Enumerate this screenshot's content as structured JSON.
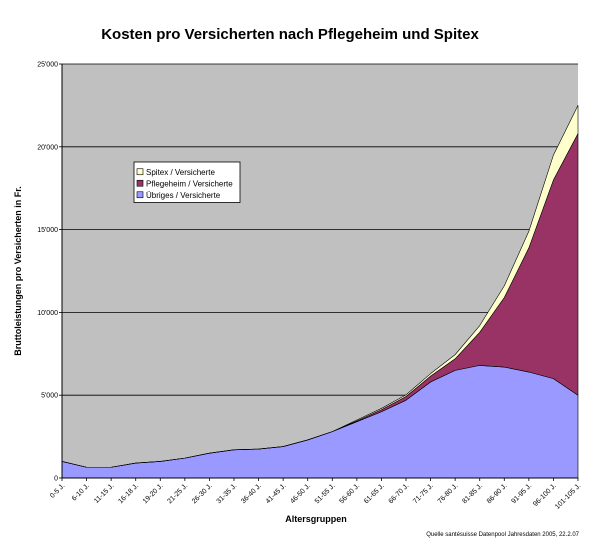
{
  "chart_data": {
    "type": "area",
    "stacked": true,
    "title": "Kosten pro Versicherten nach Pflegeheim und Spitex",
    "xlabel": "Altersgruppen",
    "ylabel": "Bruttoleistungen pro Versicherten in Fr.",
    "ylim": [
      0,
      25000
    ],
    "yticks": [
      0,
      5000,
      10000,
      15000,
      20000,
      25000
    ],
    "ytick_labels": [
      "0",
      "5'000",
      "10'000",
      "15'000",
      "20'000",
      "25'000"
    ],
    "grid": true,
    "legend_position": "upper-left",
    "categories": [
      "0-5 J.",
      "6-10 J.",
      "11-15 J.",
      "16-18 J.",
      "19-20 J.",
      "21-25 J.",
      "26-30 J.",
      "31-35 J.",
      "36-40 J.",
      "41-45 J.",
      "46-50 J.",
      "51-55 J.",
      "56-60 J.",
      "61-65 J.",
      "66-70 J.",
      "71-75 J.",
      "76-80 J.",
      "81-85 J.",
      "86-90 J.",
      "91-95 J.",
      "96-100 J.",
      "101-105 J."
    ],
    "series": [
      {
        "name": "Übriges / Versicherte",
        "color": "#9999ff",
        "values": [
          1000,
          650,
          650,
          900,
          1000,
          1200,
          1500,
          1700,
          1750,
          1900,
          2300,
          2800,
          3400,
          4000,
          4700,
          5800,
          6500,
          6800,
          6700,
          6400,
          6000,
          5000
        ]
      },
      {
        "name": "Pflegeheim / Versicherte",
        "color": "#993366",
        "values": [
          0,
          0,
          0,
          0,
          0,
          0,
          0,
          0,
          0,
          0,
          0,
          0,
          50,
          120,
          220,
          350,
          700,
          2000,
          4200,
          7500,
          12000,
          15800
        ]
      },
      {
        "name": "Spitex / Versicherte",
        "color": "#ffffcc",
        "values": [
          0,
          0,
          0,
          0,
          0,
          0,
          0,
          0,
          0,
          0,
          0,
          0,
          50,
          80,
          100,
          150,
          250,
          400,
          700,
          1000,
          1500,
          1700
        ]
      }
    ],
    "legend_order": [
      2,
      1,
      0
    ],
    "source": "Quelle santésuisse Datenpool Jahresdaten 2005, 22.2.07",
    "plot_background": "#c0c0c0"
  }
}
